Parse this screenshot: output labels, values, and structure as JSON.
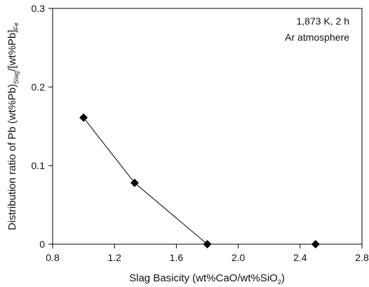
{
  "chart_data": {
    "type": "line",
    "title": "",
    "xlabel": {
      "main": "Slag Basicity (wt%CaO/wt%SiO",
      "sub": "2",
      "end": ")"
    },
    "ylabel": {
      "part1": "Distribution ratio of Pb (wt%Pb)",
      "sub1": "Slag",
      "part2": "/[wt%Pb]",
      "sub2": "Fe"
    },
    "xlim": [
      0.8,
      2.8
    ],
    "ylim": [
      0,
      0.3
    ],
    "xticks": [
      "0.8",
      "1.2",
      "1.6",
      "2.0",
      "2.4",
      "2.8"
    ],
    "yticks": [
      "0",
      "0.1",
      "0.2",
      "0.3"
    ],
    "grid": false,
    "annotation": [
      "1,873 K, 2 h",
      "Ar atmosphere"
    ],
    "series": [
      {
        "marker": "diamond",
        "color": "#000000",
        "x": [
          1.0,
          1.33,
          1.8,
          2.5
        ],
        "y": [
          0.161,
          0.078,
          0.0,
          0.0
        ],
        "line_through_points": 3
      }
    ]
  }
}
